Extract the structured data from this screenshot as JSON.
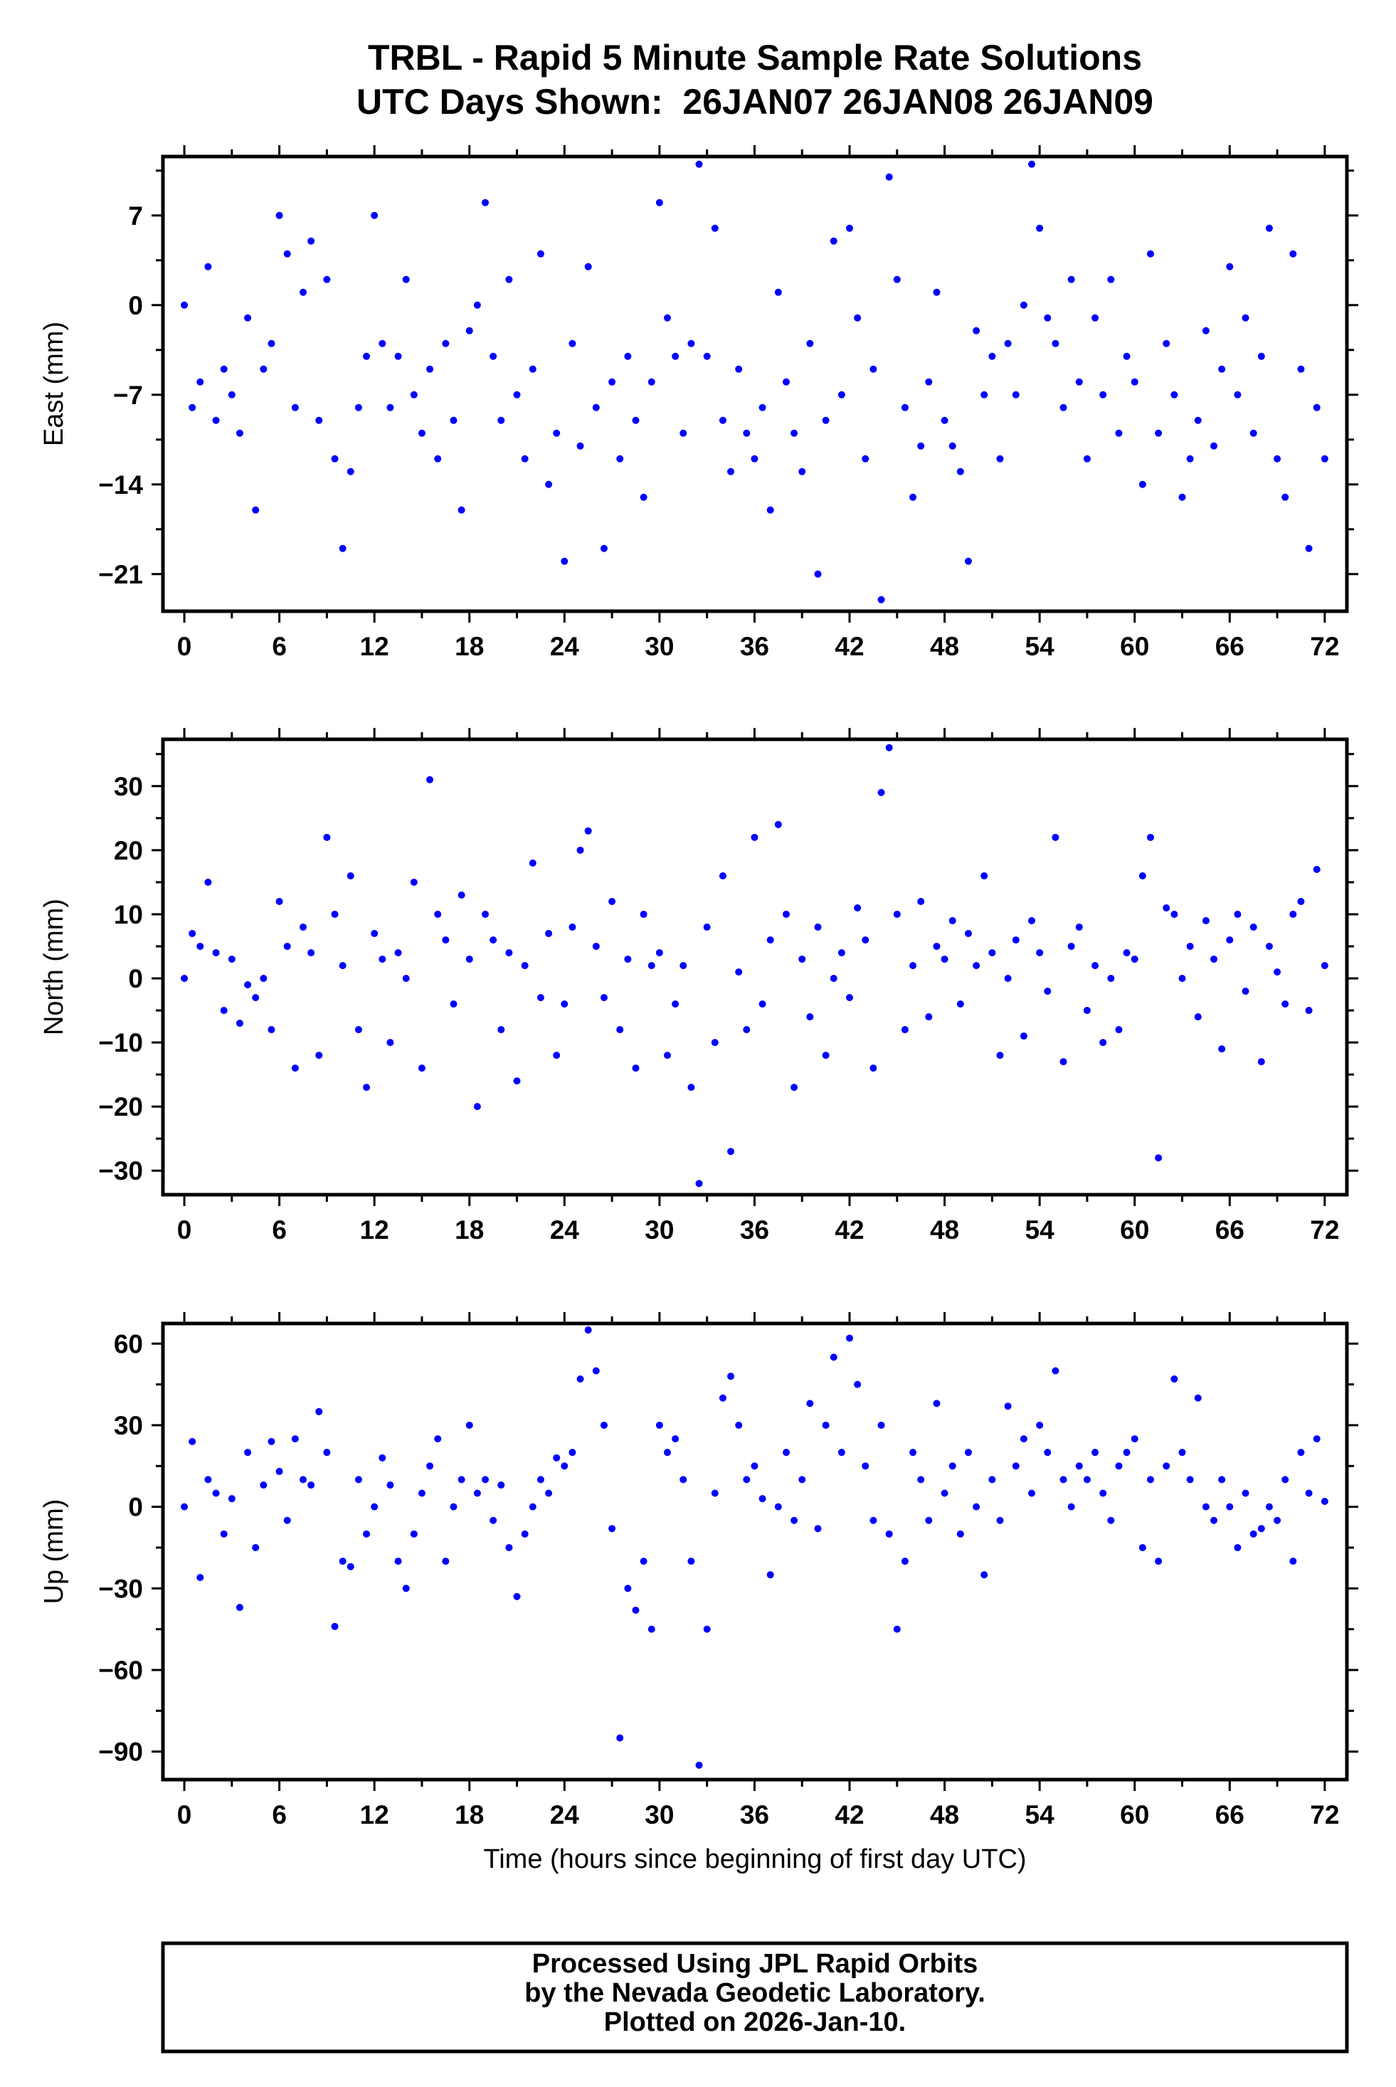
{
  "chart_data": {
    "type": "scatter",
    "title": "TRBL - Rapid 5 Minute Sample Rate Solutions",
    "subtitle": "UTC Days Shown:  26JAN07 26JAN08 26JAN09",
    "xlabel": "Time (hours since beginning of first day UTC)",
    "x_ticks": [
      0,
      6,
      12,
      18,
      24,
      30,
      36,
      42,
      48,
      54,
      60,
      66,
      72
    ],
    "xlim": [
      -1.35,
      73.4
    ],
    "x_start": 0,
    "x_step": 0.5,
    "point_color": "#0000ff",
    "grid": false,
    "panels": [
      {
        "name": "east",
        "ylabel": "East (mm)",
        "ylim": [
          -23.9,
          11.6
        ],
        "y_ticks": [
          -21,
          -14,
          -7,
          0,
          7
        ],
        "values": [
          0,
          -8,
          -6,
          3,
          -9,
          -5,
          -7,
          -10,
          -1,
          -16,
          -5,
          -3,
          7,
          4,
          -8,
          1,
          5,
          -9,
          2,
          -12,
          -19,
          -13,
          -8,
          -4,
          7,
          -3,
          -8,
          -4,
          2,
          -7,
          -10,
          -5,
          -12,
          -3,
          -9,
          -16,
          -2,
          0,
          8,
          -4,
          -9,
          2,
          -7,
          -12,
          -5,
          4,
          -14,
          -10,
          -20,
          -3,
          -11,
          3,
          -8,
          -19,
          -6,
          -12,
          -4,
          -9,
          -15,
          -6,
          8,
          -1,
          -4,
          -10,
          -3,
          11,
          -4,
          6,
          -9,
          -13,
          -5,
          -10,
          -12,
          -8,
          -16,
          1,
          -6,
          -10,
          -13,
          -3,
          -21,
          -9,
          5,
          -7,
          6,
          -1,
          -12,
          -5,
          -23,
          10,
          2,
          -8,
          -15,
          -11,
          -6,
          1,
          -9,
          -11,
          -13,
          -20,
          -2,
          -7,
          -4,
          -12,
          -3,
          -7,
          0,
          11,
          6,
          -1,
          -3,
          -8,
          2,
          -6,
          -12,
          -1,
          -7,
          2,
          -10,
          -4,
          -6,
          -14,
          4,
          -10,
          -3,
          -7,
          -15,
          -12,
          -9,
          -2,
          -11,
          -5,
          3,
          -7,
          -1,
          -10,
          -4,
          6,
          -12,
          -15,
          4,
          -5,
          -19,
          -8,
          -12
        ]
      },
      {
        "name": "north",
        "ylabel": "North (mm)",
        "ylim": [
          -33.75,
          37.3
        ],
        "y_ticks": [
          -30,
          -20,
          -10,
          0,
          10,
          20,
          30
        ],
        "values": [
          0,
          7,
          5,
          15,
          4,
          -5,
          3,
          -7,
          -1,
          -3,
          0,
          -8,
          12,
          5,
          -14,
          8,
          4,
          -12,
          22,
          10,
          2,
          16,
          -8,
          -17,
          7,
          3,
          -10,
          4,
          0,
          15,
          -14,
          31,
          10,
          6,
          -4,
          13,
          3,
          -20,
          10,
          6,
          -8,
          4,
          -16,
          2,
          18,
          -3,
          7,
          -12,
          -4,
          8,
          20,
          23,
          5,
          -3,
          12,
          -8,
          3,
          -14,
          10,
          2,
          4,
          -12,
          -4,
          2,
          -17,
          -32,
          8,
          -10,
          16,
          -27,
          1,
          -8,
          22,
          -4,
          6,
          24,
          10,
          -17,
          3,
          -6,
          8,
          -12,
          0,
          4,
          -3,
          11,
          6,
          -14,
          29,
          36,
          10,
          -8,
          2,
          12,
          -6,
          5,
          3,
          9,
          -4,
          7,
          2,
          16,
          4,
          -12,
          0,
          6,
          -9,
          9,
          4,
          -2,
          22,
          -13,
          5,
          8,
          -5,
          2,
          -10,
          0,
          -8,
          4,
          3,
          16,
          22,
          -28,
          11,
          10,
          0,
          5,
          -6,
          9,
          3,
          -11,
          6,
          10,
          -2,
          8,
          -13,
          5,
          1,
          -4,
          10,
          12,
          -5,
          17,
          2
        ]
      },
      {
        "name": "up",
        "ylabel": "Up (mm)",
        "ylim": [
          -100.3,
          67.4
        ],
        "y_ticks": [
          -90,
          -60,
          -30,
          0,
          30,
          60
        ],
        "values": [
          0,
          24,
          -26,
          10,
          5,
          -10,
          3,
          -37,
          20,
          -15,
          8,
          24,
          13,
          -5,
          25,
          10,
          8,
          35,
          20,
          -44,
          -20,
          -22,
          10,
          -10,
          0,
          18,
          8,
          -20,
          -30,
          -10,
          5,
          15,
          25,
          -20,
          0,
          10,
          30,
          5,
          10,
          -5,
          8,
          -15,
          -33,
          -10,
          0,
          10,
          5,
          18,
          15,
          20,
          47,
          65,
          50,
          30,
          -8,
          -85,
          -30,
          -38,
          -20,
          -45,
          30,
          20,
          25,
          10,
          -20,
          -95,
          -45,
          5,
          40,
          48,
          30,
          10,
          15,
          3,
          -25,
          0,
          20,
          -5,
          10,
          38,
          -8,
          30,
          55,
          20,
          62,
          45,
          15,
          -5,
          30,
          -10,
          -45,
          -20,
          20,
          10,
          -5,
          38,
          5,
          15,
          -10,
          20,
          0,
          -25,
          10,
          -5,
          37,
          15,
          25,
          5,
          30,
          20,
          50,
          10,
          0,
          15,
          10,
          20,
          5,
          -5,
          15,
          20,
          25,
          -15,
          10,
          -20,
          15,
          47,
          20,
          10,
          40,
          0,
          -5,
          10,
          0,
          -15,
          5,
          -10,
          -8,
          0,
          -5,
          10,
          -20,
          20,
          5,
          25,
          2
        ]
      }
    ]
  },
  "footer": {
    "line1": "Processed Using JPL Rapid Orbits",
    "line2": "by the Nevada Geodetic Laboratory.",
    "line3": "Plotted on 2026-Jan-10."
  }
}
